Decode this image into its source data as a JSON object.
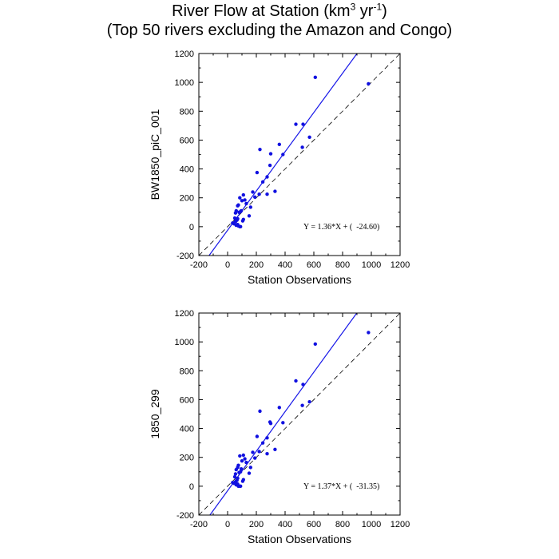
{
  "title": {
    "line1_main": "River Flow at Station (km",
    "line1_sup1": "3",
    "line1_mid": " yr",
    "line1_sup2": "-1",
    "line1_end": ")",
    "line2": "(Top 50 rivers excluding the Amazon and Congo)"
  },
  "colors": {
    "points": "#1010e0",
    "fit": "#1515e8",
    "identity": "#000000"
  },
  "chart_data": [
    {
      "type": "scatter",
      "ylabel": "BW1850_piC_001",
      "xlabel": "Station Observations",
      "xlim": [
        -200,
        1200
      ],
      "ylim": [
        -200,
        1200
      ],
      "xticks": [
        -200,
        0,
        200,
        400,
        600,
        800,
        1000,
        1200
      ],
      "yticks": [
        -200,
        0,
        200,
        400,
        600,
        800,
        1000,
        1200
      ],
      "xtick_labels": [
        "-200",
        "0",
        "200",
        "400",
        "600",
        "800",
        "1000",
        "1200"
      ],
      "ytick_labels": [
        "-200",
        "0",
        "200",
        "400",
        "600",
        "800",
        "1000",
        "1200"
      ],
      "equation": "Y = 1.36*X + (  -24.60)",
      "fit": {
        "slope": 1.36,
        "intercept": -24.6
      },
      "identity_line": true,
      "x": [
        980,
        610,
        525,
        570,
        475,
        520,
        360,
        300,
        385,
        225,
        205,
        295,
        330,
        275,
        245,
        220,
        175,
        190,
        275,
        160,
        130,
        110,
        85,
        120,
        100,
        75,
        70,
        60,
        90,
        80,
        55,
        50,
        70,
        65,
        110,
        55,
        35,
        45,
        70,
        60,
        75,
        90,
        105,
        150,
        85,
        95
      ],
      "y": [
        990,
        1035,
        710,
        620,
        710,
        550,
        570,
        505,
        500,
        535,
        375,
        425,
        245,
        345,
        310,
        225,
        240,
        205,
        225,
        135,
        160,
        220,
        200,
        185,
        180,
        150,
        145,
        110,
        105,
        100,
        95,
        60,
        55,
        45,
        50,
        35,
        25,
        20,
        15,
        10,
        5,
        0,
        40,
        75,
        0,
        110
      ]
    },
    {
      "type": "scatter",
      "ylabel": "1850_299",
      "xlabel": "Station Observations",
      "xlim": [
        -200,
        1200
      ],
      "ylim": [
        -200,
        1200
      ],
      "xticks": [
        -200,
        0,
        200,
        400,
        600,
        800,
        1000,
        1200
      ],
      "yticks": [
        -200,
        0,
        200,
        400,
        600,
        800,
        1000,
        1200
      ],
      "xtick_labels": [
        "-200",
        "0",
        "200",
        "400",
        "600",
        "800",
        "1000",
        "1200"
      ],
      "ytick_labels": [
        "-200",
        "0",
        "200",
        "400",
        "600",
        "800",
        "1000",
        "1200"
      ],
      "equation": "Y = 1.37*X + (  -31.35)",
      "fit": {
        "slope": 1.37,
        "intercept": -31.35
      },
      "identity_line": true,
      "x": [
        980,
        610,
        525,
        570,
        475,
        520,
        360,
        300,
        385,
        225,
        205,
        295,
        330,
        275,
        245,
        220,
        175,
        190,
        275,
        160,
        130,
        110,
        85,
        120,
        100,
        75,
        70,
        60,
        90,
        80,
        55,
        50,
        70,
        65,
        110,
        55,
        35,
        45,
        70,
        60,
        75,
        90,
        105,
        150,
        85,
        95
      ],
      "y": [
        1065,
        985,
        705,
        585,
        730,
        560,
        545,
        435,
        440,
        520,
        345,
        445,
        255,
        335,
        300,
        240,
        235,
        195,
        225,
        130,
        165,
        215,
        210,
        190,
        175,
        145,
        130,
        115,
        100,
        95,
        85,
        65,
        55,
        40,
        45,
        30,
        25,
        20,
        15,
        10,
        0,
        0,
        35,
        90,
        0,
        120
      ]
    }
  ]
}
